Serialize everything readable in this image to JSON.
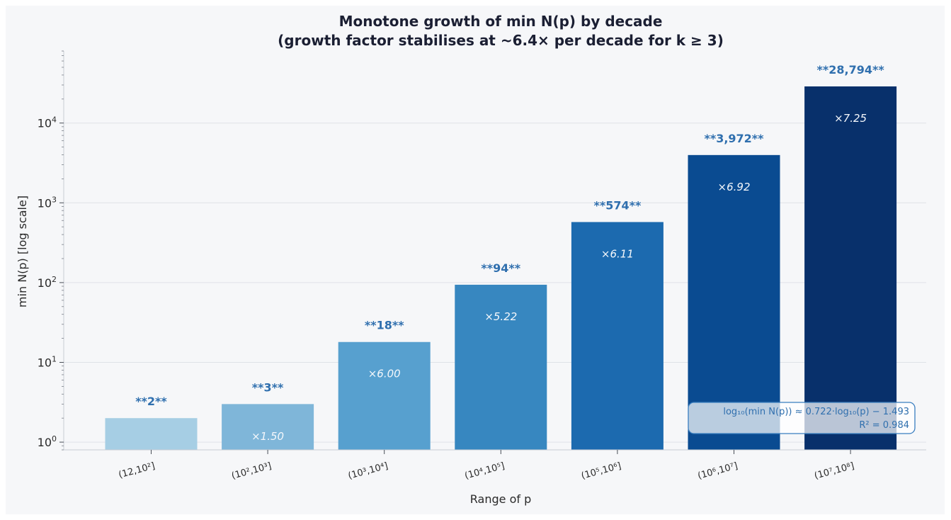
{
  "chart_data": {
    "type": "bar",
    "title": "Monotone growth of min N(p) by decade",
    "subtitle": "(growth factor stabilises at ~6.4× per decade for k ≥ 3)",
    "xlabel": "Range of p",
    "ylabel": "min N(p)  [log scale]",
    "yscale": "log",
    "ylim": [
      0.8,
      80000
    ],
    "yticks": [
      {
        "value": 1,
        "base": "10",
        "exp": "0"
      },
      {
        "value": 10,
        "base": "10",
        "exp": "1"
      },
      {
        "value": 100,
        "base": "10",
        "exp": "2"
      },
      {
        "value": 1000,
        "base": "10",
        "exp": "3"
      },
      {
        "value": 10000,
        "base": "10",
        "exp": "4"
      }
    ],
    "grid": true,
    "categories": [
      "(12,10²]",
      "(10²,10³]",
      "(10³,10⁴]",
      "(10⁴,10⁵]",
      "(10⁵,10⁶]",
      "(10⁶,10⁷]",
      "(10⁷,10⁸]"
    ],
    "values": [
      2,
      3,
      18,
      94,
      574,
      3972,
      28794
    ],
    "value_labels": [
      "**2**",
      "**3**",
      "**18**",
      "**94**",
      "**574**",
      "**3,972**",
      "**28,794**"
    ],
    "growth_labels": [
      "",
      "×1.50",
      "×6.00",
      "×5.22",
      "×6.11",
      "×6.92",
      "×7.25"
    ],
    "bar_colors": [
      "#a6cee4",
      "#7fb6d9",
      "#57a0cf",
      "#3787c0",
      "#1c6aaf",
      "#0a4b91",
      "#08306b"
    ],
    "annotation": {
      "line1": "log₁₀(min N(p)) ≈ 0.722·log₁₀(p) − 1.493",
      "line2": "R² = 0.984",
      "placement": "bottom-right"
    }
  }
}
